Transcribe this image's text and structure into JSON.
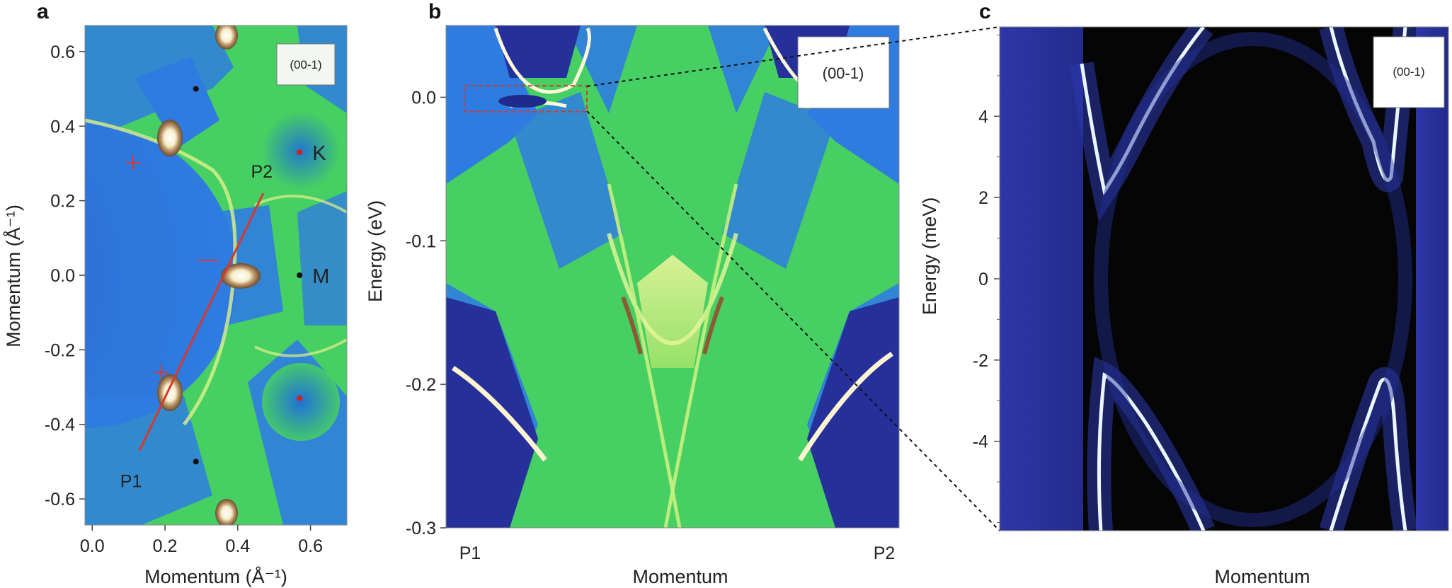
{
  "chart_data": [
    {
      "panel": "a",
      "type": "heatmap",
      "title": "",
      "xlabel": "Momentum (Å⁻¹)",
      "ylabel": "Momentum (Å⁻¹)",
      "xlim": [
        -0.02,
        0.7
      ],
      "ylim": [
        -0.67,
        0.67
      ],
      "xticks": [
        "0.0",
        "0.2",
        "0.4",
        "0.6"
      ],
      "yticks": [
        "0.6",
        "0.4",
        "0.2",
        "0.0",
        "-0.2",
        "-0.4",
        "-0.6"
      ],
      "inset_label": "(00-1)",
      "points": [
        {
          "label": "K",
          "x": 0.57,
          "y": 0.33,
          "color": "#d32020"
        },
        {
          "label": "M",
          "x": 0.57,
          "y": 0.0,
          "color": "#111111"
        },
        {
          "label": "",
          "x": 0.57,
          "y": -0.33,
          "color": "#d32020"
        },
        {
          "label": "",
          "x": 0.285,
          "y": 0.5,
          "color": "#111111"
        },
        {
          "label": "",
          "x": 0.285,
          "y": -0.5,
          "color": "#111111"
        }
      ],
      "path": {
        "start_label": "P1",
        "end_label": "P2",
        "start": [
          0.13,
          -0.47
        ],
        "end": [
          0.47,
          0.22
        ],
        "color": "#d9382c"
      }
    },
    {
      "panel": "b",
      "type": "heatmap",
      "title": "",
      "xlabel": "Momentum",
      "ylabel": "Energy (eV)",
      "ylim": [
        -0.3,
        0.05
      ],
      "yticks": [
        "0.0",
        "-0.1",
        "-0.2",
        "-0.3"
      ],
      "x_endpoints": [
        "P1",
        "P2"
      ],
      "inset_label": "(00-1)",
      "zoom_box_energy": [
        -0.01,
        0.008
      ]
    },
    {
      "panel": "c",
      "type": "heatmap",
      "title": "",
      "xlabel": "Momentum",
      "ylabel": "Energy (meV)",
      "ylim": [
        -6.2,
        6.2
      ],
      "yticks": [
        "4",
        "2",
        "0",
        "-2",
        "-4"
      ],
      "inset_label": "(00-1)"
    }
  ],
  "colors": {
    "map_blue": "#2f7ce0",
    "map_green": "#46cf63",
    "map_dark": "#1f2a8a",
    "map_black": "#050505",
    "band_white": "#f5f1d8",
    "path_red": "#d9382c"
  }
}
